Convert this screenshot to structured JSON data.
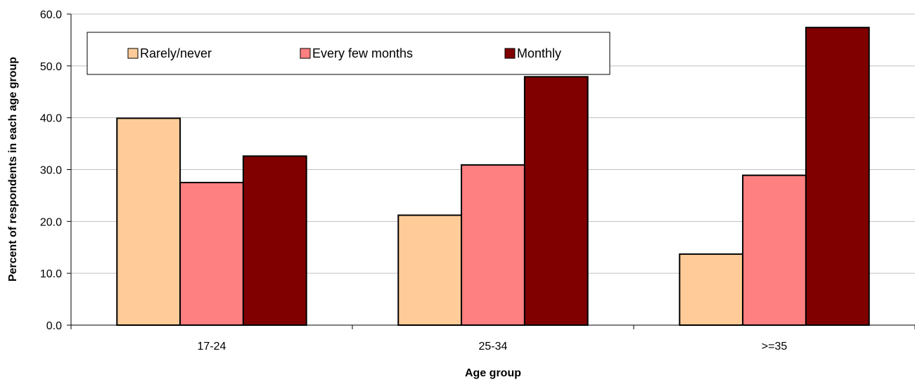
{
  "chart_data": {
    "type": "bar",
    "xlabel": "Age group",
    "ylabel": "Percent of respondents in  each age group",
    "categories": [
      "17-24",
      "25-34",
      ">=35"
    ],
    "ylim": [
      0,
      60
    ],
    "yticks": [
      "0.0",
      "10.0",
      "20.0",
      "30.0",
      "40.0",
      "50.0",
      "60.0"
    ],
    "grid": true,
    "legend_position": "top-left",
    "series": [
      {
        "name": "Rarely/never",
        "values": [
          39.9,
          21.2,
          13.7
        ],
        "color": "#FFCC99"
      },
      {
        "name": "Every few months",
        "values": [
          27.5,
          30.9,
          28.9
        ],
        "color": "#FF8080"
      },
      {
        "name": "Monthly",
        "values": [
          32.6,
          47.9,
          57.4
        ],
        "color": "#800000"
      }
    ]
  }
}
